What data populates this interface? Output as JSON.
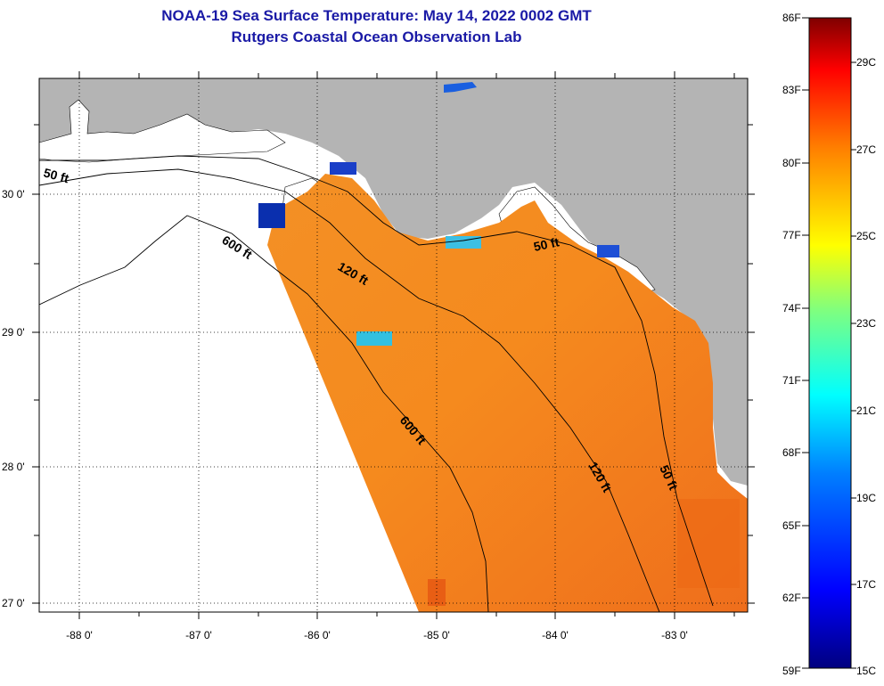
{
  "title": "NOAA-19 Sea Surface Temperature:  May 14, 2022 0002 GMT",
  "subtitle": "Rutgers Coastal Ocean Observation Lab",
  "lon_labels": [
    "-88 0'",
    "-87 0'",
    "-86 0'",
    "-85 0'",
    "-84 0'",
    "-83 0'"
  ],
  "lat_labels": [
    "30 0'",
    "29 0'",
    "28 0'",
    "27 0'"
  ],
  "contours": {
    "ft50_west": "50 ft",
    "ft600_north": "600 ft",
    "ft120_north": "120 ft",
    "ft50_east": "50 ft",
    "ft600_south": "600 ft",
    "ft120_south": "120 ft",
    "ft50_south": "50 ft"
  },
  "colorbar": {
    "fahrenheit": [
      "86F",
      "83F",
      "80F",
      "77F",
      "74F",
      "71F",
      "68F",
      "65F",
      "62F",
      "59F"
    ],
    "celsius": [
      "29C",
      "27C",
      "25C",
      "23C",
      "21C",
      "19C",
      "17C",
      "15C"
    ],
    "colors": [
      "#00007f",
      "#0000ff",
      "#007fff",
      "#00ffff",
      "#7fff7f",
      "#ffff00",
      "#ff7f00",
      "#ff0000",
      "#7f0000"
    ]
  },
  "colors": {
    "land": "#b4b4b4",
    "sst_main": "#f58a1e",
    "title": "#1a1aa6"
  }
}
